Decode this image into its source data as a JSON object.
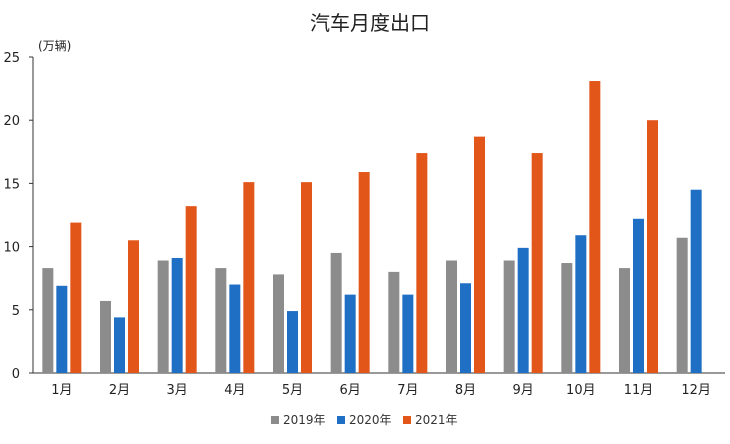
{
  "chart_data": {
    "type": "bar",
    "title": "汽车月度出口",
    "ylabel": "(万辆)",
    "xlabel": "",
    "ylim": [
      0,
      25
    ],
    "yticks": [
      0,
      5,
      10,
      15,
      20,
      25
    ],
    "grid": false,
    "legend_position": "bottom",
    "categories": [
      "1月",
      "2月",
      "3月",
      "4月",
      "5月",
      "6月",
      "7月",
      "8月",
      "9月",
      "10月",
      "11月",
      "12月"
    ],
    "series": [
      {
        "name": "2019年",
        "color": "#8c8c8c",
        "values": [
          8.3,
          5.7,
          8.9,
          8.3,
          7.8,
          9.5,
          8.0,
          8.9,
          8.9,
          8.7,
          8.3,
          10.7
        ]
      },
      {
        "name": "2020年",
        "color": "#1f6fc5",
        "values": [
          6.9,
          4.4,
          9.1,
          7.0,
          4.9,
          6.2,
          6.2,
          7.1,
          9.9,
          10.9,
          12.2,
          14.5
        ]
      },
      {
        "name": "2021年",
        "color": "#e2561a",
        "values": [
          11.9,
          10.5,
          13.2,
          15.1,
          15.1,
          15.9,
          17.4,
          18.7,
          17.4,
          23.1,
          20.0,
          null
        ]
      }
    ]
  }
}
